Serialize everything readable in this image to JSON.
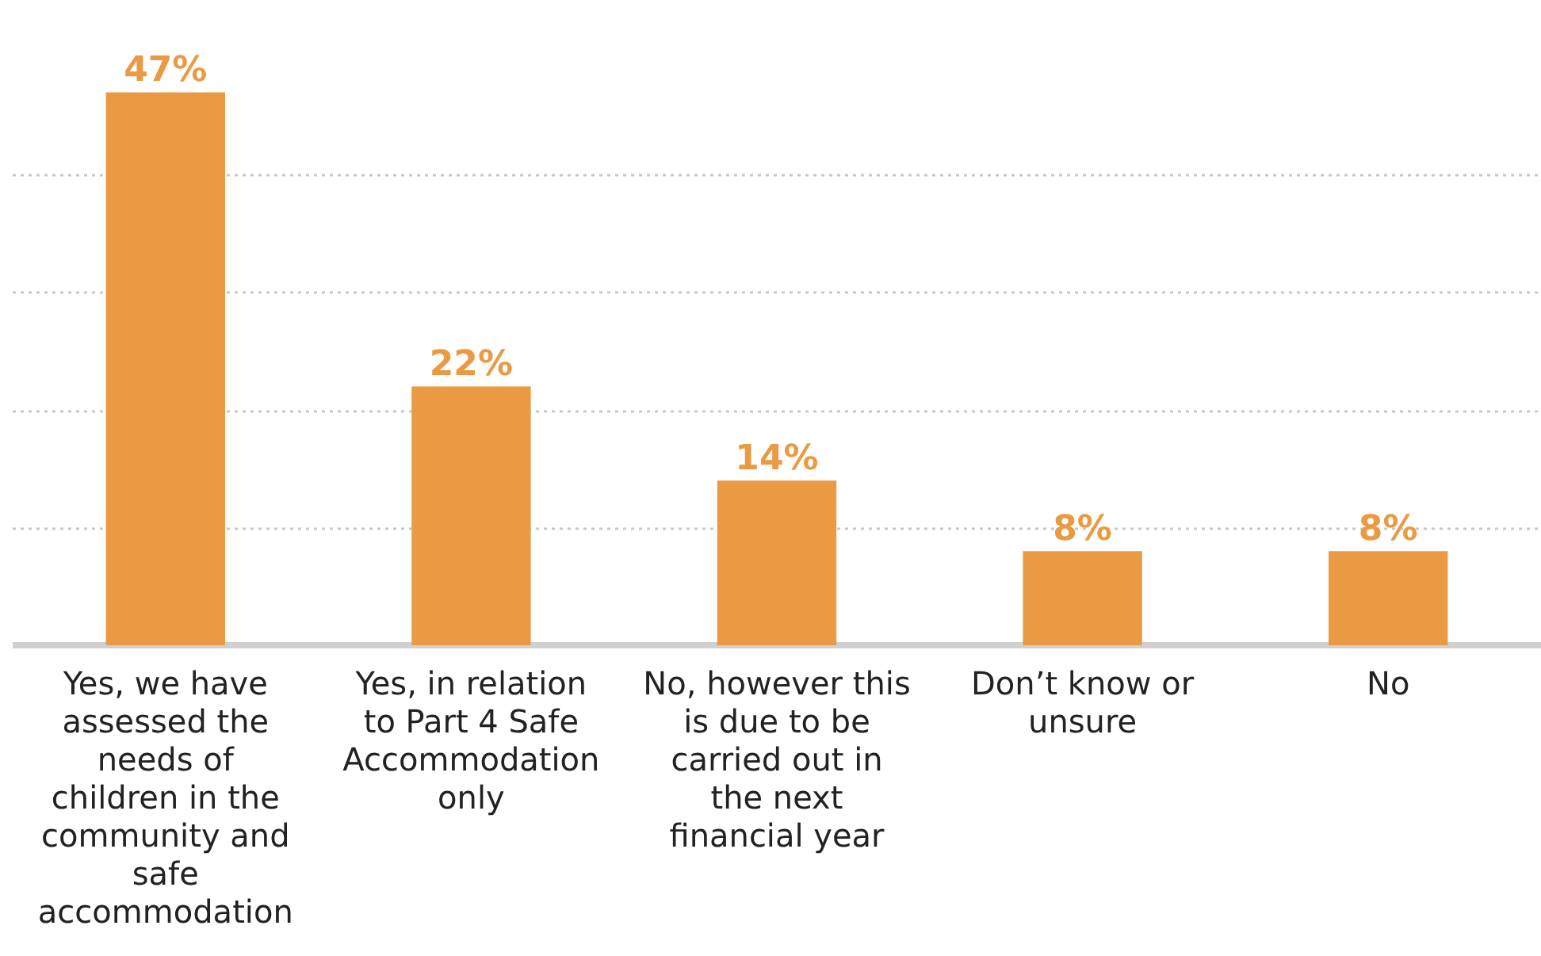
{
  "chart_data": {
    "type": "bar",
    "categories": [
      "Yes, we have assessed the needs of children in the community and safe accommodation",
      "Yes, in relation to Part 4 Safe Accommodation only",
      "No, however this is due to be carried out in the next financial year",
      "Don’t know or unsure",
      "No"
    ],
    "values": [
      47,
      22,
      14,
      8,
      8
    ],
    "color": "#ea9a43",
    "value_labels": [
      "47%",
      "22%",
      "14%",
      "8%",
      "8%"
    ],
    "yticks": [
      0,
      10,
      20,
      30,
      40
    ],
    "tick_labels": "x",
    "grid": "y"
  }
}
